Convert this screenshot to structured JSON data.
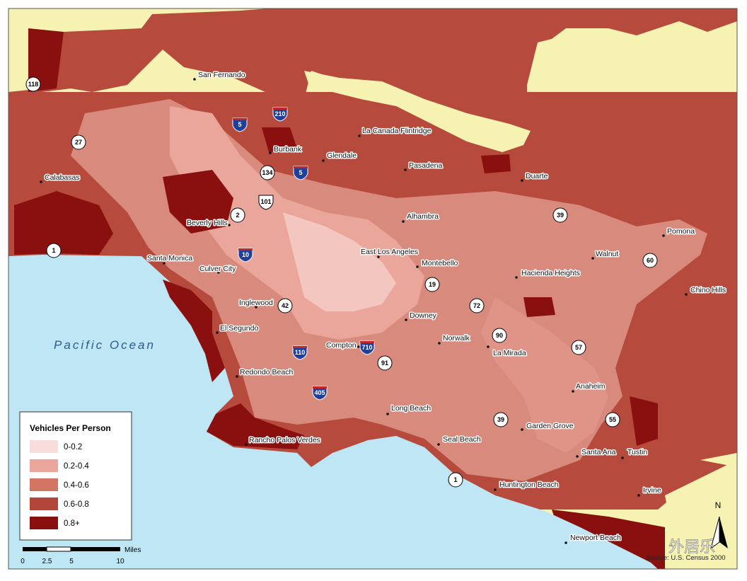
{
  "map": {
    "ocean_label": "Pacific Ocean",
    "cities": [
      "San Fernando",
      "La Canada Flintridge",
      "Burbank",
      "Glendale",
      "Pasadena",
      "Duarte",
      "Calabasas",
      "Beverly Hills",
      "Alhambra",
      "Pomona",
      "Walnut",
      "Santa Monica",
      "East Los Angeles",
      "Montebello",
      "Culver City",
      "Hacienda Heights",
      "Chino Hills",
      "Inglewood",
      "Downey",
      "El Segundo",
      "Norwalk",
      "Compton",
      "La Mirada",
      "Redondo Beach",
      "Anaheim",
      "Long Beach",
      "Garden Grove",
      "Rancho Palos Verdes",
      "Seal Beach",
      "Santa Ana",
      "Tustin",
      "Huntington Beach",
      "Irvine",
      "Newport Beach"
    ],
    "highways": [
      "118",
      "27",
      "1",
      "5",
      "210",
      "5",
      "134",
      "101",
      "2",
      "10",
      "42",
      "110",
      "405",
      "710",
      "91",
      "19",
      "72",
      "90",
      "57",
      "39",
      "60",
      "55",
      "39",
      "1"
    ],
    "legend": {
      "title": "Vehicles Per Person",
      "classes": [
        {
          "label": "0-0.2",
          "color": "#f9dcdc"
        },
        {
          "label": "0.2-0.4",
          "color": "#eba69c"
        },
        {
          "label": "0.4-0.6",
          "color": "#d27563"
        },
        {
          "label": "0.6-0.8",
          "color": "#b2463a"
        },
        {
          "label": "0.8+",
          "color": "#8a0f0f"
        }
      ]
    },
    "scale_bar": {
      "unit": "Miles",
      "ticks": [
        0,
        2.5,
        5,
        10
      ]
    },
    "north": "N",
    "source": "Source: U.S. Census 2000",
    "watermark": "外居乐"
  }
}
